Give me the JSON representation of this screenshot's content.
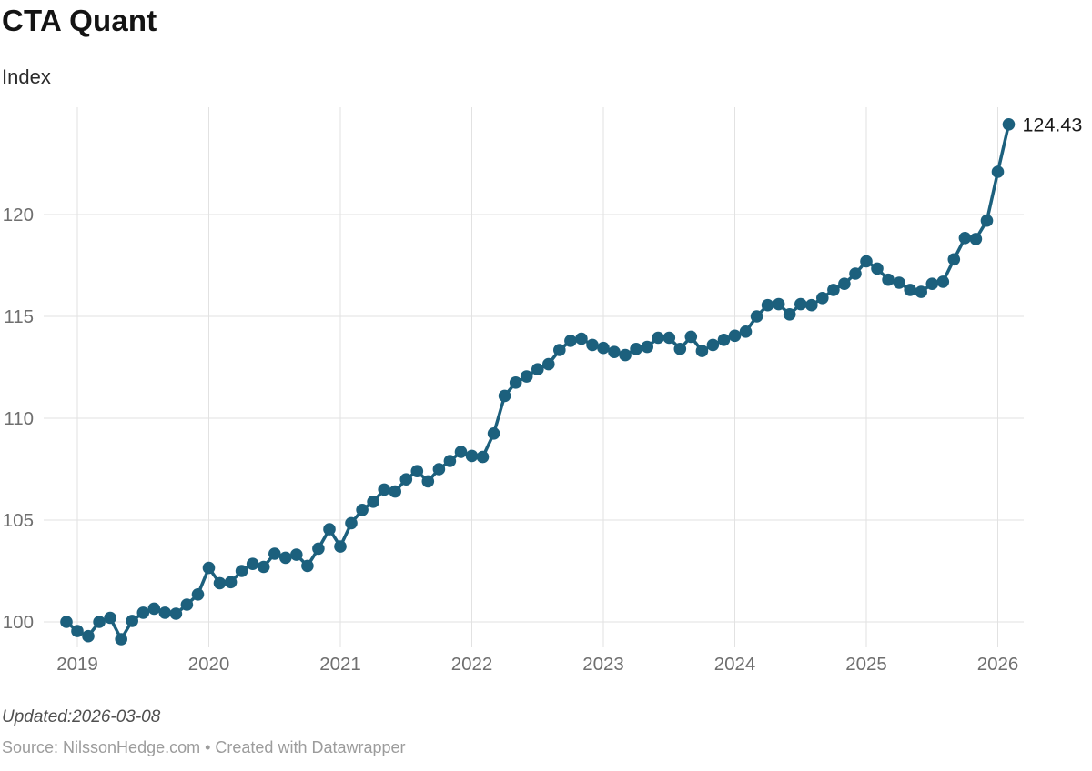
{
  "header": {
    "title": "CTA Quant",
    "subtitle": "Index"
  },
  "footer": {
    "updated": "Updated:2026-03-08",
    "source": "Source: NilssonHedge.com • Created with Datawrapper"
  },
  "colors": {
    "line": "#1c607d",
    "grid": "#e2e2e2",
    "axis_text": "#6f6f6f",
    "annotation_text": "#1a1a1a"
  },
  "chart_data": {
    "type": "line",
    "title": "CTA Quant",
    "ylabel": "Index",
    "grid": true,
    "legend": "none",
    "ylim": [
      98.75,
      125.4
    ],
    "y_ticks": [
      100,
      105,
      110,
      115,
      120
    ],
    "x_ticks": [
      "2019",
      "2020",
      "2021",
      "2022",
      "2023",
      "2024",
      "2025",
      "2026"
    ],
    "last_point_label": "124.43",
    "x": [
      "2018-12",
      "2019-01",
      "2019-02",
      "2019-03",
      "2019-04",
      "2019-05",
      "2019-06",
      "2019-07",
      "2019-08",
      "2019-09",
      "2019-10",
      "2019-11",
      "2019-12",
      "2020-01",
      "2020-02",
      "2020-03",
      "2020-04",
      "2020-05",
      "2020-06",
      "2020-07",
      "2020-08",
      "2020-09",
      "2020-10",
      "2020-11",
      "2020-12",
      "2021-01",
      "2021-02",
      "2021-03",
      "2021-04",
      "2021-05",
      "2021-06",
      "2021-07",
      "2021-08",
      "2021-09",
      "2021-10",
      "2021-11",
      "2021-12",
      "2022-01",
      "2022-02",
      "2022-03",
      "2022-04",
      "2022-05",
      "2022-06",
      "2022-07",
      "2022-08",
      "2022-09",
      "2022-10",
      "2022-11",
      "2022-12",
      "2023-01",
      "2023-02",
      "2023-03",
      "2023-04",
      "2023-05",
      "2023-06",
      "2023-07",
      "2023-08",
      "2023-09",
      "2023-10",
      "2023-11",
      "2023-12",
      "2024-01",
      "2024-02",
      "2024-03",
      "2024-04",
      "2024-05",
      "2024-06",
      "2024-07",
      "2024-08",
      "2024-09",
      "2024-10",
      "2024-11",
      "2024-12",
      "2025-01",
      "2025-02",
      "2025-03",
      "2025-04",
      "2025-05",
      "2025-06",
      "2025-07",
      "2025-08",
      "2025-09",
      "2025-10",
      "2025-11",
      "2025-12",
      "2026-01",
      "2026-02"
    ],
    "values": [
      100.0,
      99.55,
      99.3,
      100.0,
      100.2,
      99.15,
      100.05,
      100.45,
      100.65,
      100.45,
      100.4,
      100.85,
      101.35,
      102.65,
      101.9,
      101.95,
      102.5,
      102.85,
      102.7,
      103.35,
      103.15,
      103.3,
      102.75,
      103.6,
      104.55,
      103.7,
      104.85,
      105.5,
      105.9,
      106.5,
      106.4,
      107.0,
      107.4,
      106.9,
      107.5,
      107.9,
      108.35,
      108.15,
      108.1,
      109.25,
      111.1,
      111.75,
      112.05,
      112.4,
      112.65,
      113.35,
      113.8,
      113.9,
      113.6,
      113.45,
      113.25,
      113.1,
      113.4,
      113.5,
      113.95,
      113.95,
      113.4,
      114.0,
      113.3,
      113.6,
      113.85,
      114.05,
      114.25,
      115.0,
      115.55,
      115.6,
      115.1,
      115.6,
      115.55,
      115.9,
      116.3,
      116.6,
      117.1,
      117.7,
      117.35,
      116.8,
      116.65,
      116.3,
      116.2,
      116.6,
      116.7,
      117.8,
      118.85,
      118.8,
      119.7,
      122.1,
      124.43
    ]
  }
}
